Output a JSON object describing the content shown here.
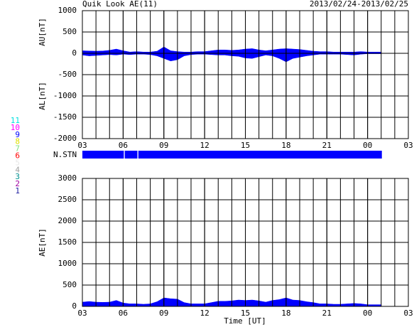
{
  "chart_data": [
    {
      "type": "area",
      "title": "Quik Look AE(11)",
      "subtitle": "2013/02/24-2013/02/25",
      "x": [
        3,
        3.5,
        4,
        4.5,
        5,
        5.5,
        6,
        6.5,
        7,
        7.5,
        8,
        8.5,
        9,
        9.5,
        10,
        10.5,
        11,
        11.5,
        12,
        12.5,
        13,
        13.5,
        14,
        14.5,
        15,
        15.5,
        16,
        16.5,
        17,
        17.5,
        18,
        18.5,
        19,
        19.5,
        20,
        20.5,
        21,
        21.5,
        22,
        22.5,
        23,
        23.5,
        24,
        24.5,
        25
      ],
      "series": [
        {
          "name": "AU[nT]",
          "color": "#0000ff",
          "values": [
            60,
            55,
            50,
            55,
            70,
            100,
            60,
            30,
            40,
            30,
            30,
            50,
            150,
            60,
            40,
            30,
            30,
            40,
            40,
            60,
            80,
            80,
            70,
            80,
            100,
            110,
            80,
            60,
            80,
            100,
            110,
            100,
            90,
            70,
            50,
            40,
            40,
            30,
            30,
            30,
            30,
            40,
            30,
            30,
            30
          ]
        },
        {
          "name": "AL[nT]",
          "color": "#0000ff",
          "values": [
            -40,
            -60,
            -50,
            -40,
            -30,
            -40,
            -20,
            -30,
            -20,
            -20,
            -30,
            -60,
            -120,
            -180,
            -150,
            -60,
            -30,
            -20,
            -20,
            -30,
            -40,
            -40,
            -60,
            -70,
            -110,
            -120,
            -80,
            -40,
            -60,
            -120,
            -200,
            -120,
            -90,
            -60,
            -40,
            -20,
            -20,
            -20,
            -20,
            -30,
            -40,
            -20,
            -10,
            -10,
            -10
          ]
        }
      ],
      "xlim": [
        3,
        27
      ],
      "xticks": [
        {
          "value": 3,
          "label": "03"
        },
        {
          "value": 6,
          "label": "06"
        },
        {
          "value": 9,
          "label": "09"
        },
        12,
        15,
        18,
        21,
        {
          "value": 24,
          "label": "00"
        },
        {
          "value": 27,
          "label": "03"
        }
      ],
      "ylim": [
        -2000,
        1000
      ],
      "yticks": [
        1000,
        500,
        0,
        -500,
        -1000,
        -1500,
        -2000
      ],
      "grid": true
    },
    {
      "type": "area",
      "xlabel": "Time [UT]",
      "x": [
        3,
        3.5,
        4,
        4.5,
        5,
        5.5,
        6,
        6.5,
        7,
        7.5,
        8,
        8.5,
        9,
        9.5,
        10,
        10.5,
        11,
        11.5,
        12,
        12.5,
        13,
        13.5,
        14,
        14.5,
        15,
        15.5,
        16,
        16.5,
        17,
        17.5,
        18,
        18.5,
        19,
        19.5,
        20,
        20.5,
        21,
        21.5,
        22,
        22.5,
        23,
        23.5,
        24,
        24.5,
        25
      ],
      "series": [
        {
          "name": "AE[nT]",
          "color": "#0000ff",
          "values": [
            100,
            115,
            100,
            95,
            100,
            140,
            80,
            60,
            60,
            50,
            60,
            110,
            200,
            180,
            170,
            90,
            60,
            60,
            60,
            90,
            120,
            120,
            130,
            150,
            140,
            150,
            130,
            100,
            140,
            160,
            200,
            150,
            140,
            110,
            90,
            60,
            60,
            50,
            50,
            60,
            70,
            60,
            40,
            40,
            40
          ]
        }
      ],
      "xlim": [
        3,
        27
      ],
      "xticks": [
        {
          "value": 3,
          "label": "03"
        },
        {
          "value": 6,
          "label": "06"
        },
        {
          "value": 9,
          "label": "09"
        },
        12,
        15,
        18,
        21,
        {
          "value": 24,
          "label": "00"
        },
        {
          "value": 27,
          "label": "03"
        }
      ],
      "ylim": [
        0,
        3000
      ],
      "yticks": [
        3000,
        2500,
        2000,
        1500,
        1000,
        500,
        0
      ],
      "grid": true
    }
  ],
  "stations": {
    "label": "N.STN",
    "legend": [
      {
        "label": "11",
        "color": "#00e0e0"
      },
      {
        "label": "10",
        "color": "#ff00ff"
      },
      {
        "label": "9",
        "color": "#0000ff"
      },
      {
        "label": "8",
        "color": "#e0e000"
      },
      {
        "label": "7",
        "color": "#80e080"
      },
      {
        "label": "6",
        "color": "#ff0000"
      },
      {
        "label": "5",
        "color": "#e8e8e8"
      },
      {
        "label": "4",
        "color": "#a0a0a0"
      },
      {
        "label": "3",
        "color": "#009090"
      },
      {
        "label": "2",
        "color": "#a000a0"
      },
      {
        "label": "1",
        "color": "#2020a0"
      }
    ],
    "segments": [
      {
        "start": 3,
        "end": 6.05,
        "color": "#0000ff"
      },
      {
        "start": 6.12,
        "end": 7.05,
        "color": "#0000ff"
      },
      {
        "start": 7.12,
        "end": 25.05,
        "color": "#0000ff"
      }
    ]
  }
}
